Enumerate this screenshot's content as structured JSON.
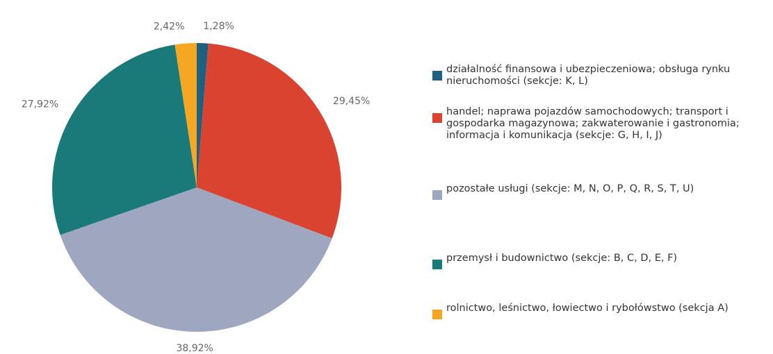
{
  "chart_data": {
    "type": "pie",
    "categories": [
      "działalność finansowa i ubezpieczeniowa; obsługa rynku nieruchomości (sekcje: K, L)",
      "handel; naprawa pojazdów samochodowych; transport i gospodarka magazynowa; zakwaterowanie i gastronomia; informacja i komunikacja (sekcje: G, H, I, J)",
      "pozostałe usługi (sekcje: M, N, O, P, Q, R, S, T, U)",
      "przemysł i budownictwo (sekcje: B, C, D, E, F)",
      "rolnictwo, leśnictwo, łowiectwo i rybołówstwo (sekcja A)"
    ],
    "values": [
      1.28,
      29.45,
      38.92,
      27.92,
      2.42
    ],
    "value_labels": [
      "1,28%",
      "29,45%",
      "38,92%",
      "27,92%",
      "2,42%"
    ],
    "colors": [
      "#1f5f80",
      "#d9432f",
      "#9ea7bf",
      "#1a7a7a",
      "#f5a623"
    ],
    "legend": "right"
  }
}
